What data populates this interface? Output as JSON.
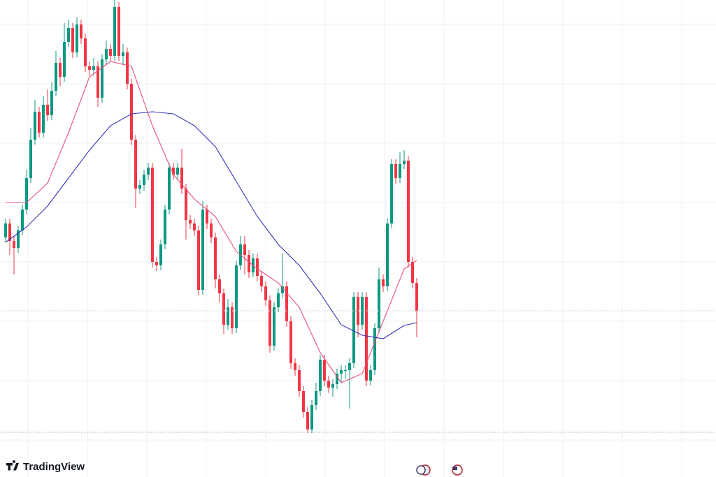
{
  "chart_data": {
    "type": "candlestick",
    "brand": "TradingView",
    "ylim": [
      0,
      683
    ],
    "up_color": "#089981",
    "down_color": "#f23645",
    "open": [
      343,
      363,
      338,
      328,
      353,
      383,
      428,
      483,
      523,
      493,
      533,
      518,
      553,
      593,
      573,
      623,
      643,
      608,
      648,
      628,
      588,
      583,
      588,
      543,
      598,
      613,
      603,
      673,
      603,
      608,
      563,
      483,
      413,
      418,
      433,
      443,
      308,
      303,
      333,
      383,
      443,
      433,
      443,
      413,
      368,
      363,
      353,
      268,
      383,
      363,
      343,
      283,
      263,
      218,
      243,
      213,
      303,
      333,
      318,
      293,
      313,
      288,
      273,
      253,
      188,
      243,
      263,
      273,
      223,
      163,
      153,
      123,
      93,
      68,
      103,
      123,
      168,
      138,
      128,
      133,
      148,
      153,
      153,
      163,
      258,
      218,
      258,
      138,
      153,
      213,
      283,
      273,
      363,
      448,
      428,
      448,
      453,
      308,
      278
    ],
    "high": [
      370,
      370,
      345,
      360,
      390,
      440,
      500,
      540,
      530,
      545,
      555,
      565,
      610,
      600,
      650,
      655,
      650,
      658,
      655,
      635,
      595,
      600,
      595,
      605,
      625,
      620,
      683,
      680,
      620,
      615,
      570,
      490,
      425,
      440,
      450,
      450,
      315,
      340,
      390,
      450,
      450,
      450,
      470,
      420,
      375,
      370,
      360,
      395,
      390,
      370,
      350,
      290,
      270,
      255,
      250,
      310,
      345,
      345,
      325,
      320,
      320,
      295,
      280,
      260,
      250,
      270,
      320,
      280,
      230,
      170,
      160,
      130,
      100,
      110,
      135,
      175,
      175,
      145,
      140,
      155,
      160,
      160,
      170,
      265,
      265,
      265,
      265,
      160,
      220,
      300,
      290,
      370,
      455,
      455,
      465,
      468,
      460,
      315,
      285
    ],
    "low": [
      336,
      318,
      290,
      321,
      346,
      376,
      421,
      476,
      486,
      486,
      510,
      511,
      546,
      560,
      566,
      616,
      600,
      601,
      620,
      580,
      575,
      575,
      530,
      536,
      591,
      596,
      596,
      596,
      590,
      555,
      475,
      385,
      405,
      410,
      425,
      300,
      295,
      296,
      326,
      376,
      425,
      426,
      405,
      340,
      355,
      345,
      260,
      261,
      355,
      335,
      270,
      250,
      205,
      211,
      205,
      206,
      296,
      290,
      285,
      286,
      280,
      265,
      245,
      178,
      181,
      236,
      256,
      215,
      155,
      145,
      115,
      85,
      63,
      63,
      96,
      116,
      130,
      120,
      115,
      126,
      135,
      140,
      98,
      156,
      200,
      211,
      130,
      131,
      146,
      206,
      265,
      266,
      356,
      420,
      421,
      441,
      300,
      270,
      200
    ],
    "close": [
      363,
      338,
      328,
      353,
      383,
      428,
      483,
      523,
      493,
      533,
      518,
      553,
      593,
      573,
      623,
      643,
      608,
      648,
      628,
      588,
      583,
      588,
      543,
      598,
      613,
      603,
      673,
      603,
      608,
      563,
      483,
      413,
      418,
      433,
      443,
      308,
      303,
      333,
      383,
      443,
      433,
      443,
      413,
      368,
      363,
      353,
      268,
      383,
      363,
      343,
      283,
      263,
      218,
      243,
      213,
      303,
      333,
      318,
      293,
      313,
      288,
      273,
      253,
      188,
      243,
      263,
      273,
      223,
      163,
      153,
      123,
      93,
      68,
      103,
      123,
      168,
      138,
      128,
      133,
      148,
      153,
      153,
      163,
      258,
      218,
      258,
      138,
      153,
      213,
      283,
      273,
      363,
      448,
      428,
      448,
      453,
      308,
      278,
      238
    ],
    "series": [
      {
        "color": "#e8507a",
        "x": [
          0,
          5,
          10,
          15,
          20,
          25,
          30,
          35,
          40,
          45,
          50,
          55,
          60,
          65,
          70,
          75,
          80,
          85,
          90,
          95,
          98
        ],
        "values": [
          393,
          393,
          421,
          493,
          573,
          595,
          588,
          503,
          433,
          398,
          373,
          323,
          298,
          278,
          243,
          178,
          135,
          148,
          223,
          298,
          310
        ]
      },
      {
        "color": "#3434b8",
        "x": [
          0,
          5,
          10,
          15,
          20,
          25,
          30,
          35,
          40,
          45,
          50,
          55,
          60,
          65,
          70,
          75,
          80,
          85,
          90,
          95,
          98
        ],
        "values": [
          336,
          358,
          388,
          428,
          468,
          503,
          520,
          523,
          520,
          503,
          473,
          423,
          373,
          333,
          303,
          263,
          218,
          203,
          198,
          217,
          221
        ]
      }
    ]
  }
}
